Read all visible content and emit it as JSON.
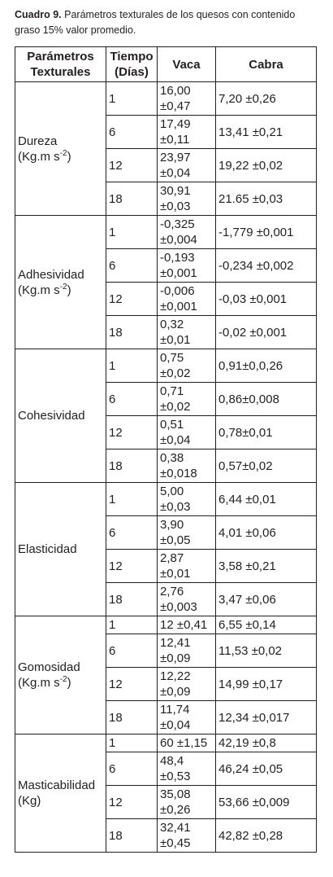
{
  "caption": {
    "label": "Cuadro 9.",
    "text": "Parámetros texturales de los quesos con contenido graso 15% valor promedio."
  },
  "table": {
    "headers": [
      "Parámetros Texturales",
      "Tiempo (Días)",
      "Vaca",
      "Cabra"
    ],
    "groups": [
      {
        "name": "Dureza",
        "unit": {
          "base": "(Kg.m s",
          "sup": "-2",
          "end": ")"
        },
        "rows": [
          [
            "1",
            "16,00 ±0,47",
            "7,20 ±0,26"
          ],
          [
            "6",
            "17,49 ±0,11",
            "13,41 ±0,21"
          ],
          [
            "12",
            "23,97 ±0,04",
            "19,22 ±0,02"
          ],
          [
            "18",
            "30,91 ±0,03",
            "21.65 ±0,03"
          ]
        ]
      },
      {
        "name": "Adhesividad",
        "unit": {
          "base": "(Kg.m s",
          "sup": "-2",
          "end": ")"
        },
        "rows": [
          [
            "1",
            "-0,325 ±0,004",
            "-1,779 ±0,001"
          ],
          [
            "6",
            "-0,193 ±0,001",
            "-0,234 ±0,002"
          ],
          [
            "12",
            "-0,006 ±0,001",
            "-0,03 ±0,001"
          ],
          [
            "18",
            "0,32 ±0,01",
            "-0,02 ±0,001"
          ]
        ]
      },
      {
        "name": "Cohesividad",
        "rows": [
          [
            "1",
            "0,75 ±0,02",
            "0,91±0,0,26"
          ],
          [
            "6",
            "0,71 ±0,02",
            "0,86±0,008"
          ],
          [
            "12",
            "0,51 ±0,04",
            "0,78±0,01"
          ],
          [
            "18",
            "0,38 ±0,018",
            "0,57±0,02"
          ]
        ]
      },
      {
        "name": "Elasticidad",
        "rows": [
          [
            "1",
            "5,00 ±0,03",
            "6,44 ±0,01"
          ],
          [
            "6",
            "3,90 ±0,05",
            "4,01 ±0,06"
          ],
          [
            "12",
            "2,87 ±0,01",
            "3,58 ±0,21"
          ],
          [
            "18",
            "2,76 ±0,003",
            "3,47 ±0,06"
          ]
        ]
      },
      {
        "name": "Gomosidad",
        "unit": {
          "base": "(Kg.m s",
          "sup": "-2",
          "end": ")"
        },
        "rows": [
          [
            "1",
            "12 ±0,41",
            "6,55 ±0,14"
          ],
          [
            "6",
            "12,41 ±0,09",
            "11,53 ±0,02"
          ],
          [
            "12",
            "12,22 ±0,09",
            "14,99 ±0,17"
          ],
          [
            "18",
            "11,74 ±0,04",
            "12,34 ±0,017"
          ]
        ]
      },
      {
        "name": "Masticabilidad",
        "unit": {
          "base": "(Kg)"
        },
        "rows": [
          [
            "1",
            "60 ±1,15",
            "42,19 ±0,8"
          ],
          [
            "6",
            "48,4 ±0,53",
            "46,24 ±0,05"
          ],
          [
            "12",
            "35,08 ±0,26",
            "53,66 ±0,009"
          ],
          [
            "18",
            "32,41 ±0,45",
            "42,82 ±0,28"
          ]
        ]
      }
    ]
  }
}
